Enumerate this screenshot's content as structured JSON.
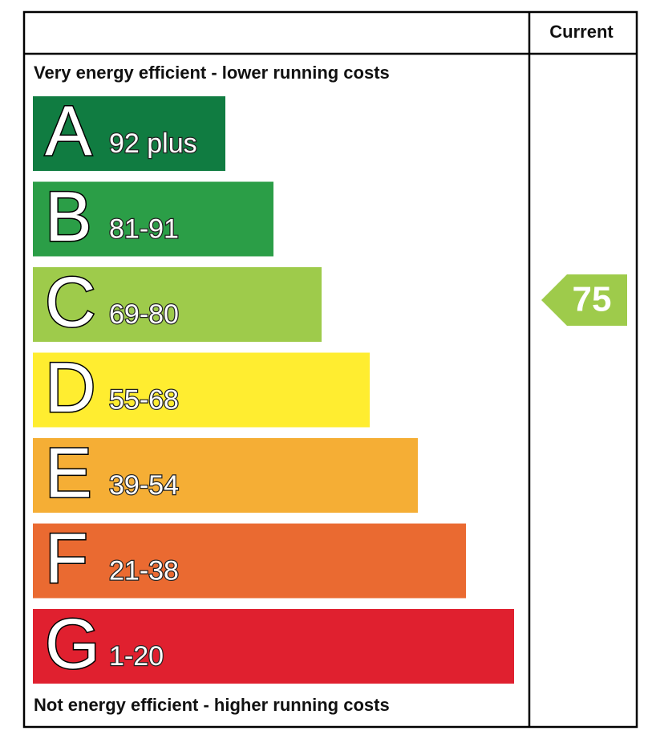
{
  "header": {
    "current_label": "Current"
  },
  "top_label": "Very energy efficient - lower running costs",
  "bottom_label": "Not energy efficient - higher running costs",
  "bands": [
    {
      "letter": "A",
      "range": "92 plus",
      "color": "#107c41"
    },
    {
      "letter": "B",
      "range": "81-91",
      "color": "#2b9e47"
    },
    {
      "letter": "C",
      "range": "69-80",
      "color": "#9ecb4b"
    },
    {
      "letter": "D",
      "range": "55-68",
      "color": "#ffed30"
    },
    {
      "letter": "E",
      "range": "39-54",
      "color": "#f5ae35"
    },
    {
      "letter": "F",
      "range": "21-38",
      "color": "#ea6a31"
    },
    {
      "letter": "G",
      "range": "1-20",
      "color": "#e0202f"
    }
  ],
  "current": {
    "rating": "75",
    "color": "#9ecb4b"
  }
}
